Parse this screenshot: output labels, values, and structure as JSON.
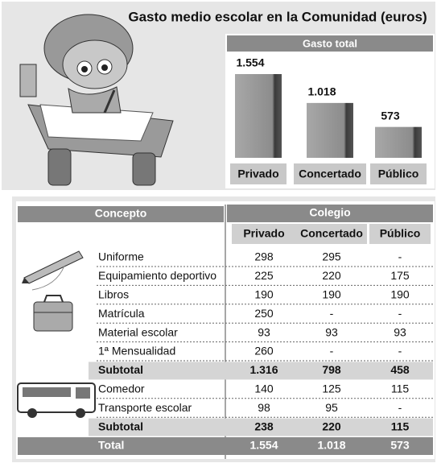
{
  "title": "Gasto medio escolar en la Comunidad (euros)",
  "chart_data": {
    "type": "bar",
    "title": "Gasto total",
    "categories": [
      "Privado",
      "Concertado",
      "Público"
    ],
    "values": [
      1554,
      1018,
      573
    ],
    "value_labels": [
      "1.554",
      "1.018",
      "573"
    ],
    "color": "#8c8c8c"
  },
  "table": {
    "header": [
      "Concepto",
      "Colegio"
    ],
    "columns": [
      "Privado",
      "Concertado",
      "Público"
    ],
    "rows": [
      [
        "Uniforme",
        "298",
        "295",
        "-"
      ],
      [
        "Equipamiento deportivo",
        "225",
        "220",
        "175"
      ],
      [
        "Libros",
        "190",
        "190",
        "190"
      ],
      [
        "Matrícula",
        "250",
        "-",
        "-"
      ],
      [
        "Material escolar",
        "93",
        "93",
        "93"
      ],
      [
        "1ª Mensualidad",
        "260",
        "-",
        "-"
      ],
      [
        "Subtotal",
        "1.316",
        "798",
        "458"
      ],
      [
        "Comedor",
        "140",
        "125",
        "115"
      ],
      [
        "Transporte escolar",
        "98",
        "95",
        "-"
      ],
      [
        "Subtotal",
        "238",
        "220",
        "115"
      ],
      [
        "Total",
        "1.554",
        "1.018",
        "573"
      ]
    ]
  }
}
